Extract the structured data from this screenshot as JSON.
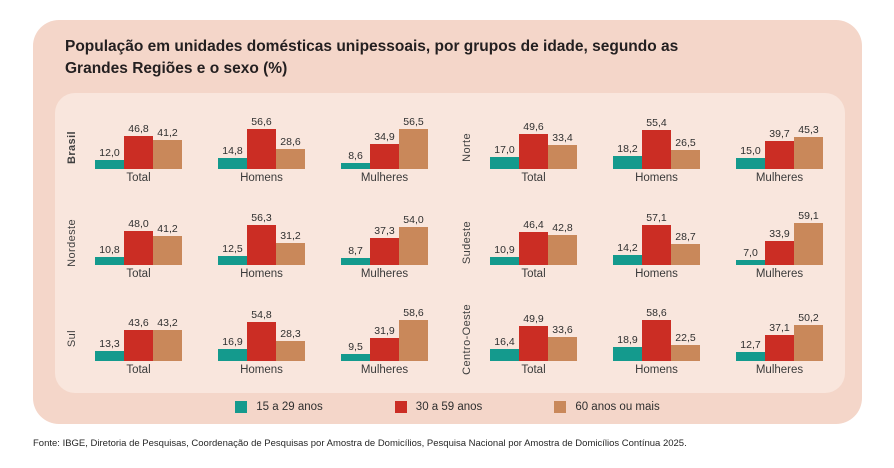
{
  "header": {
    "title_line1": "População em unidades domésticas unipessoais, por grupos de idade, segundo as",
    "title_line2": "Grandes Regiões e o sexo (%)"
  },
  "legend": {
    "items": [
      {
        "label": "15 a 29 anos",
        "color": "#149a8d"
      },
      {
        "label": "30 a 59 anos",
        "color": "#cb2d24"
      },
      {
        "label": "60 anos ou mais",
        "color": "#c9885a"
      }
    ]
  },
  "footer": {
    "source": "Fonte: IBGE, Diretoria de Pesquisas, Coordenação de Pesquisas por Amostra de Domicílios, Pesquisa Nacional por Amostra de Domicílios Contínua 2025."
  },
  "colors": {
    "page_bg": "#ffffff",
    "card_bg": "#f4d6c9",
    "panel_bg": "#f9e6dd",
    "title_text": "#231f20",
    "label_text": "#3f3f3f"
  },
  "chart_data": {
    "type": "bar",
    "title": "População em unidades domésticas unipessoais, por grupos de idade, segundo as Grandes Regiões e o sexo (%)",
    "unit": "%",
    "categories": [
      "Total",
      "Homens",
      "Mulheres"
    ],
    "series_labels": [
      "15 a 29 anos",
      "30 a 59 anos",
      "60 anos ou mais"
    ],
    "colors": [
      "#149a8d",
      "#cb2d24",
      "#c9885a"
    ],
    "ylim": [
      0,
      60
    ],
    "decimal_separator": ",",
    "legend_position": "bottom",
    "grid": false,
    "regions": [
      {
        "name": "Brasil",
        "emphasis": true,
        "groups": [
          [
            12.0,
            46.8,
            41.2
          ],
          [
            14.8,
            56.6,
            28.6
          ],
          [
            8.6,
            34.9,
            56.5
          ]
        ]
      },
      {
        "name": "Norte",
        "emphasis": false,
        "groups": [
          [
            17.0,
            49.6,
            33.4
          ],
          [
            18.2,
            55.4,
            26.5
          ],
          [
            15.0,
            39.7,
            45.3
          ]
        ]
      },
      {
        "name": "Nordeste",
        "emphasis": false,
        "groups": [
          [
            10.8,
            48.0,
            41.2
          ],
          [
            12.5,
            56.3,
            31.2
          ],
          [
            8.7,
            37.3,
            54.0
          ]
        ]
      },
      {
        "name": "Sudeste",
        "emphasis": false,
        "groups": [
          [
            10.9,
            46.4,
            42.8
          ],
          [
            14.2,
            57.1,
            28.7
          ],
          [
            7.0,
            33.9,
            59.1
          ]
        ]
      },
      {
        "name": "Sul",
        "emphasis": false,
        "groups": [
          [
            13.3,
            43.6,
            43.2
          ],
          [
            16.9,
            54.8,
            28.3
          ],
          [
            9.5,
            31.9,
            58.6
          ]
        ]
      },
      {
        "name": "Centro-Oeste",
        "emphasis": false,
        "groups": [
          [
            16.4,
            49.9,
            33.6
          ],
          [
            18.9,
            58.6,
            22.5
          ],
          [
            12.7,
            37.1,
            50.2
          ]
        ]
      }
    ]
  }
}
